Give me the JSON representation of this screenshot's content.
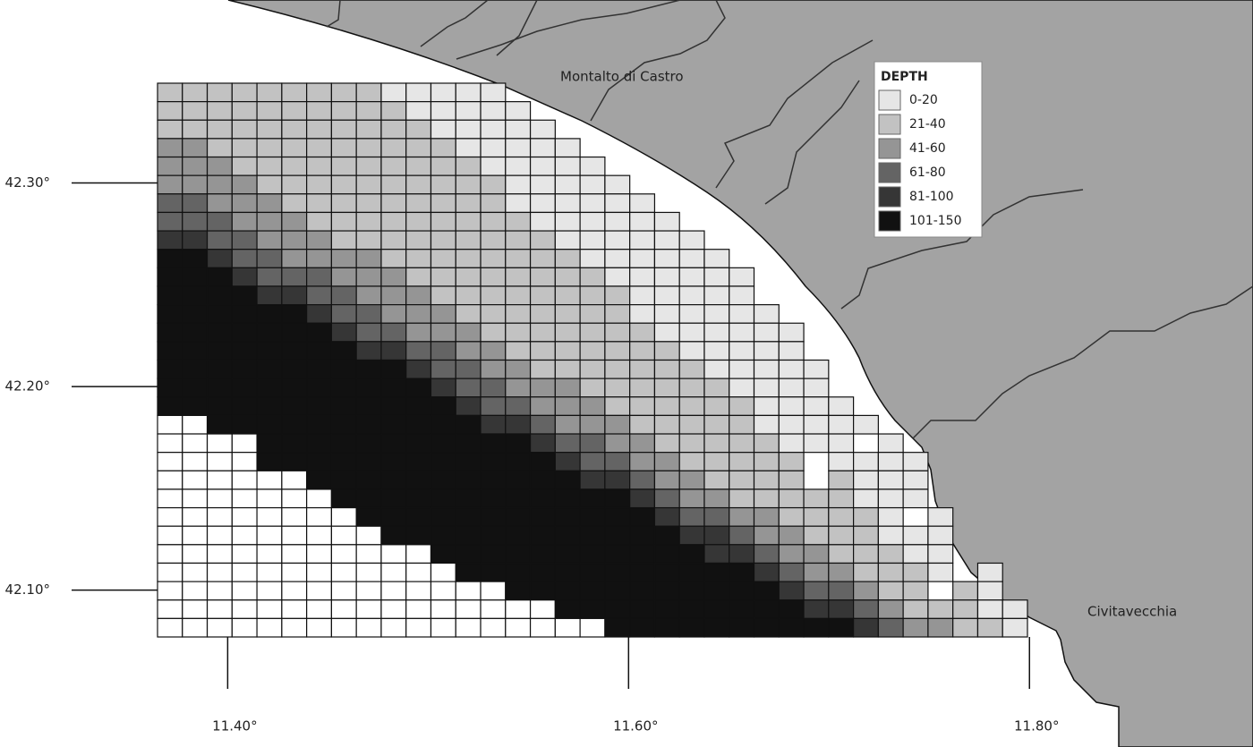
{
  "places": [
    "Montalto di Castro",
    "Civitavecchia"
  ],
  "legend": {
    "title": "DEPTH",
    "items": [
      {
        "label": "0-20",
        "color": "#e6e6e6"
      },
      {
        "label": "21-40",
        "color": "#c2c2c2"
      },
      {
        "label": "41-60",
        "color": "#959595"
      },
      {
        "label": "61-80",
        "color": "#646464"
      },
      {
        "label": "81-100",
        "color": "#363636"
      },
      {
        "label": "101-150",
        "color": "#111111"
      }
    ]
  },
  "no_data_color": "#ffffff",
  "xlim": [
    11.365,
    11.799
  ],
  "ylim": [
    42.077,
    42.349
  ],
  "xticks": [
    {
      "value": 11.4,
      "label": "11.40°"
    },
    {
      "value": 11.6,
      "label": "11.60°"
    },
    {
      "value": 11.8,
      "label": "11.80°"
    }
  ],
  "yticks": [
    {
      "value": 42.3,
      "label": "42.30°"
    },
    {
      "value": 42.2,
      "label": "42.20°"
    },
    {
      "value": 42.1,
      "label": "42.10°"
    }
  ],
  "grid": {
    "rows": [
      "11111111100000",
      "111111111100000",
      "1111111111100000",
      "22111111111100000",
      "222111111111100000",
      "2222111111111100000",
      "33222111111111000000",
      "333222111111111000000",
      "4433222111111111000000",
      "55433222211111111000000",
      "555433322211111111000000",
      "555544332221111111100000",
      "5555554332221111111000000",
      "55555554332221111111000000",
      "55555555443322111111100000",
      "555555555543322111111100000",
      "555555555554332221111110000",
      "5555555555554332221111110000",
      "xx555555555554432221111100000",
      "xxxx555555555554332211111000 0",
      "xxxx5555555555554332211111 0000",
      "xxxxxx55555555555443221111 1000",
      "xxxxxxx555555555555432211111000",
      "xxxxxxxx5555555555554332211110 0",
      "xxxxxxxxx55555555555544322111000",
      "xxxxxxxxxxx555555555554432211100",
      "xxxxxxxxxxxx55555555555543221110 0",
      "xxxxxxxxxxxxxx55555555555433211 10",
      "xxxxxxxxxxxxxxxx5555555555443211100",
      "xxxxxxxxxxxxxxxxxx55555555554322110"
    ]
  }
}
